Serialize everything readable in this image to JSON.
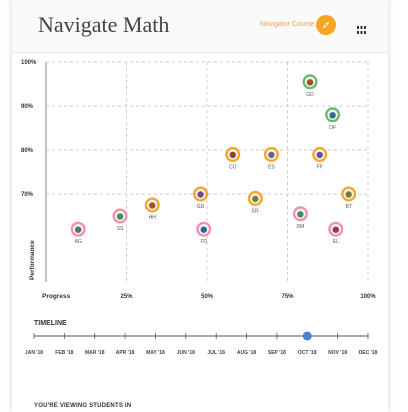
{
  "header": {
    "title": "Navigate Math",
    "nav_link": "Navigator Course"
  },
  "icons": {
    "compass": "compass-icon",
    "grid": "grid-view-icon"
  },
  "colors": {
    "accent": "#f5a623",
    "link": "#f0a050",
    "timeline": "#4a7fd4",
    "ring_orange": "#f5a623",
    "ring_pink": "#f48fb1",
    "ring_green": "#66bb6a"
  },
  "chart_data": {
    "type": "scatter",
    "xlabel": "Progress",
    "ylabel": "Performance",
    "xlim": [
      0,
      100
    ],
    "ylim": [
      50,
      100
    ],
    "x_ticks": [
      {
        "value": 25,
        "label": "25%"
      },
      {
        "value": 50,
        "label": "50%"
      },
      {
        "value": 75,
        "label": "75%"
      },
      {
        "value": 100,
        "label": "100%"
      }
    ],
    "y_ticks": [
      {
        "value": 70,
        "label": "70%"
      },
      {
        "value": 80,
        "label": "80%"
      },
      {
        "value": 90,
        "label": "90%"
      },
      {
        "value": 100,
        "label": "100%"
      }
    ],
    "grid": true,
    "points": [
      {
        "label": "AG",
        "x": 10,
        "y": 62,
        "ring": "pink"
      },
      {
        "label": "SS",
        "x": 23,
        "y": 65,
        "ring": "pink"
      },
      {
        "label": "HH",
        "x": 33,
        "y": 67.5,
        "ring": "orange"
      },
      {
        "label": "GD",
        "x": 48,
        "y": 70,
        "ring": "orange"
      },
      {
        "label": "FD",
        "x": 49,
        "y": 62,
        "ring": "pink"
      },
      {
        "label": "CO",
        "x": 58,
        "y": 79,
        "ring": "orange"
      },
      {
        "label": "ER",
        "x": 65,
        "y": 69,
        "ring": "orange"
      },
      {
        "label": "ES",
        "x": 70,
        "y": 79,
        "ring": "orange"
      },
      {
        "label": "DM",
        "x": 79,
        "y": 65.5,
        "ring": "pink"
      },
      {
        "label": "GD",
        "x": 82,
        "y": 95.5,
        "ring": "green"
      },
      {
        "label": "FF",
        "x": 85,
        "y": 79,
        "ring": "orange"
      },
      {
        "label": "DF",
        "x": 89,
        "y": 88,
        "ring": "green"
      },
      {
        "label": "EL",
        "x": 90,
        "y": 62,
        "ring": "pink"
      },
      {
        "label": "BT",
        "x": 94,
        "y": 70,
        "ring": "orange"
      }
    ]
  },
  "timeline": {
    "title": "TIMELINE",
    "months": [
      "JAN '18",
      "FEB '18",
      "MAR '18",
      "APR '18",
      "MAY '18",
      "JUN '18",
      "JUL '18",
      "AUG '18",
      "SEP '18",
      "OCT '18",
      "NOV '18",
      "DEC '18"
    ],
    "selected_index": 9
  },
  "footer": {
    "viewing_label": "YOU'RE VIEWING STUDENTS IN"
  }
}
